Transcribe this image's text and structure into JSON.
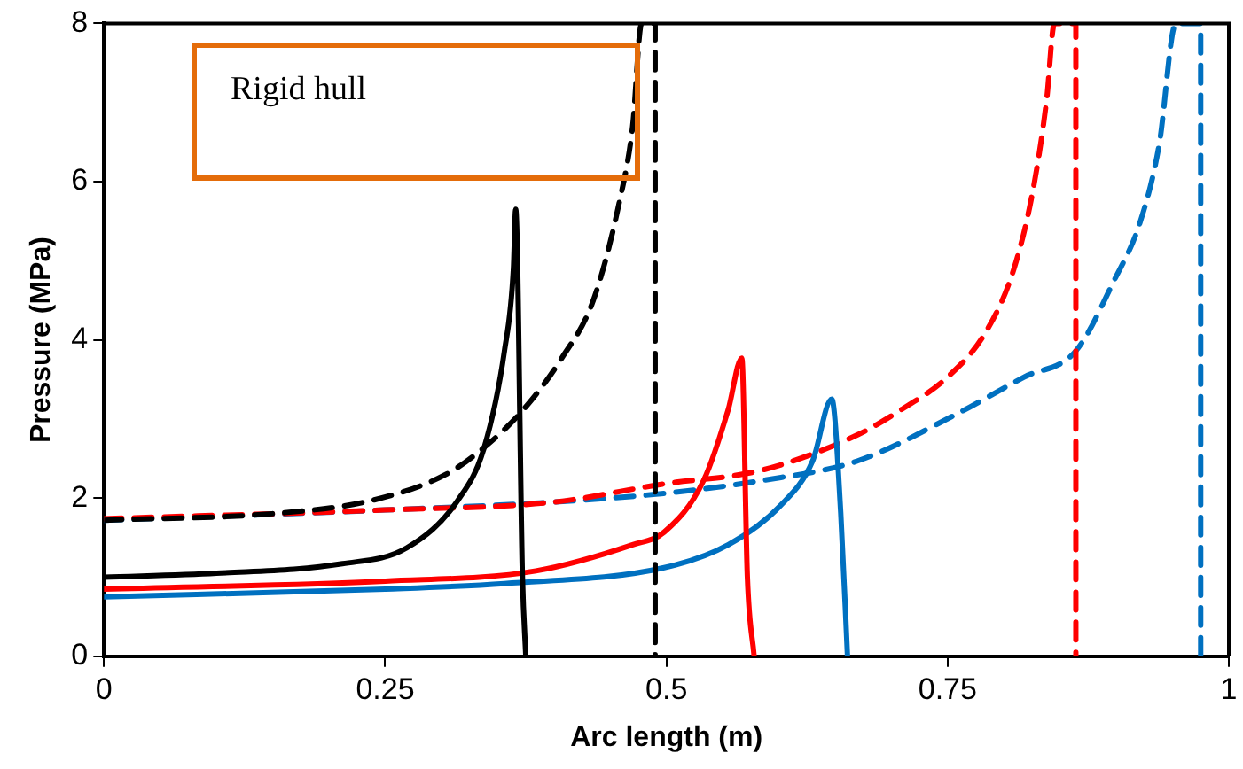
{
  "chart_data": {
    "type": "line",
    "xlabel": "Arc length (m)",
    "ylabel": "Pressure (MPa)",
    "annotations": [
      "Rigid hull"
    ],
    "xlim": [
      0,
      1
    ],
    "xticks": [
      0,
      0.25,
      0.5,
      0.75,
      1
    ],
    "ylim": [
      0,
      8
    ],
    "yticks": [
      0,
      2,
      4,
      6,
      8
    ],
    "grid": false,
    "legend": false,
    "marker": "none",
    "series": [
      {
        "color": "#000000",
        "line_style": "solid",
        "x": [
          0,
          0.1,
          0.212,
          0.269,
          0.315,
          0.338,
          0.356,
          0.364,
          0.366,
          0.372,
          0.375
        ],
        "values": [
          1.0,
          1.05,
          1.17,
          1.37,
          1.98,
          2.64,
          3.86,
          4.9,
          5.65,
          1.0,
          0
        ]
      },
      {
        "color": "#000000",
        "line_style": "dashed",
        "x": [
          0,
          0.156,
          0.241,
          0.304,
          0.338,
          0.373,
          0.407,
          0.435,
          0.458,
          0.47,
          0.478,
          0.49,
          0.49
        ],
        "values": [
          1.72,
          1.81,
          1.98,
          2.3,
          2.64,
          3.12,
          3.77,
          4.5,
          5.73,
          6.7,
          8,
          8,
          0
        ]
      },
      {
        "color": "#ff0000",
        "line_style": "solid",
        "x": [
          0,
          0.25,
          0.384,
          0.47,
          0.498,
          0.533,
          0.555,
          0.567,
          0.572,
          0.578
        ],
        "values": [
          0.85,
          0.95,
          1.08,
          1.41,
          1.57,
          2.22,
          3.12,
          3.77,
          1.0,
          0
        ]
      },
      {
        "color": "#0070c0",
        "line_style": "solid",
        "x": [
          0,
          0.25,
          0.356,
          0.498,
          0.555,
          0.601,
          0.63,
          0.647,
          0.655,
          0.661
        ],
        "values": [
          0.75,
          0.85,
          0.92,
          1.12,
          1.41,
          1.9,
          2.47,
          3.25,
          1.81,
          0
        ]
      },
      {
        "color": "#ff0000",
        "line_style": "dashed",
        "x": [
          0,
          0.25,
          0.4,
          0.498,
          0.584,
          0.67,
          0.709,
          0.75,
          0.784,
          0.809,
          0.826,
          0.838,
          0.845,
          0.864,
          0.864
        ],
        "values": [
          1.74,
          1.85,
          1.95,
          2.18,
          2.35,
          2.8,
          3.12,
          3.53,
          4.1,
          4.9,
          5.9,
          7.03,
          8,
          8,
          0
        ]
      },
      {
        "color": "#0070c0",
        "line_style": "dashed",
        "x": [
          0,
          0.25,
          0.4,
          0.498,
          0.584,
          0.67,
          0.755,
          0.818,
          0.864,
          0.898,
          0.921,
          0.938,
          0.953,
          0.975,
          0.975
        ],
        "values": [
          1.72,
          1.85,
          1.95,
          2.06,
          2.22,
          2.47,
          3.04,
          3.53,
          3.86,
          4.75,
          5.48,
          6.46,
          8,
          8,
          0
        ]
      }
    ]
  }
}
